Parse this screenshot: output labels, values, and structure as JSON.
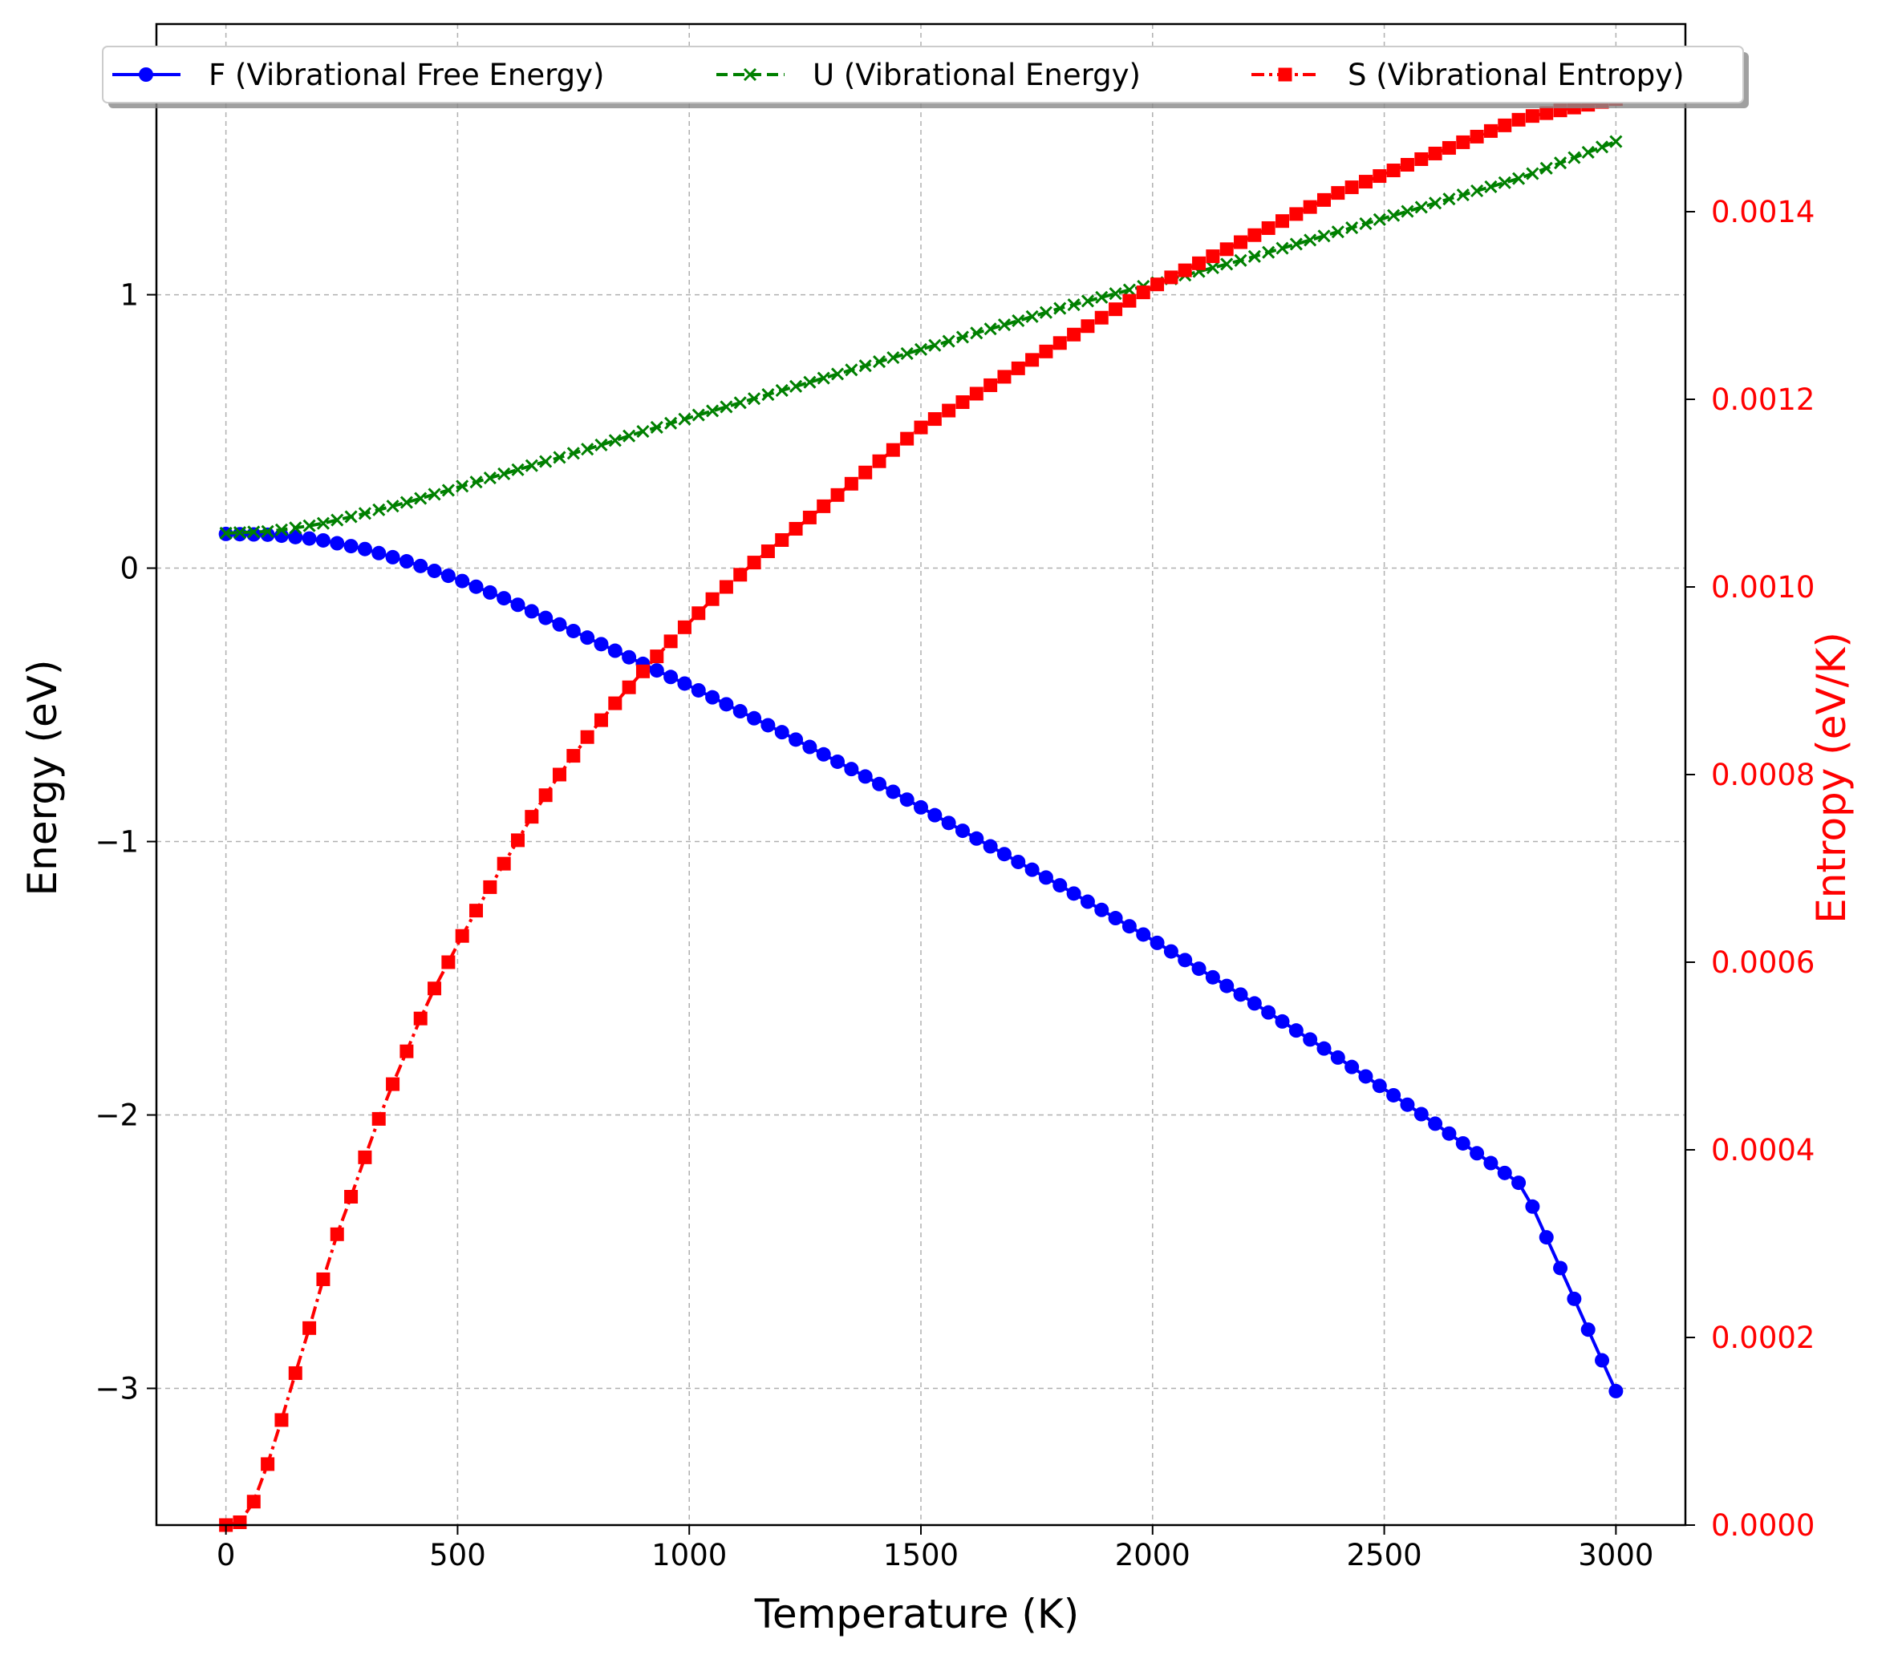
{
  "chart_data": {
    "type": "line",
    "title": "",
    "xlabel": "Temperature (K)",
    "ylabel": "Energy (eV)",
    "y2label": "Entropy (eV/K)",
    "xlim": [
      -150,
      3150
    ],
    "ylim": [
      -3.5,
      1.99
    ],
    "y2lim": [
      0.0,
      0.0016
    ],
    "xticks": [
      0,
      500,
      1000,
      1500,
      2000,
      2500,
      3000
    ],
    "xtick_labels": [
      "0",
      "500",
      "1000",
      "1500",
      "2000",
      "2500",
      "3000"
    ],
    "yticks": [
      -3,
      -2,
      -1,
      0,
      1
    ],
    "ytick_labels": [
      "−3",
      "−2",
      "−1",
      "0",
      "1"
    ],
    "y2ticks": [
      0.0,
      0.0002,
      0.0004,
      0.0006,
      0.0008,
      0.001,
      0.0012,
      0.0014
    ],
    "y2tick_labels": [
      "0.0000",
      "0.0002",
      "0.0004",
      "0.0006",
      "0.0008",
      "0.0010",
      "0.0012",
      "0.0014"
    ],
    "grid": true,
    "legend_position": "top",
    "x_range": [
      0,
      3000
    ],
    "x_step": 30,
    "series": [
      {
        "name": "F (Vibrational Free Energy)",
        "axis": "left",
        "color": "#0000ff",
        "marker": "circle",
        "linestyle": "solid",
        "x": [
          0,
          100,
          200,
          300,
          400,
          500,
          600,
          700,
          800,
          900,
          1000,
          1200,
          1400,
          1600,
          1800,
          2000,
          2200,
          2400,
          2600,
          2800,
          3000
        ],
        "y": [
          0.125,
          0.122,
          0.105,
          0.07,
          0.02,
          -0.04,
          -0.11,
          -0.19,
          -0.27,
          -0.35,
          -0.43,
          -0.6,
          -0.78,
          -0.97,
          -1.16,
          -1.36,
          -1.57,
          -1.79,
          -2.02,
          -2.26,
          -3.01
        ]
      },
      {
        "name": "U (Vibrational Energy)",
        "axis": "left",
        "color": "#008000",
        "marker": "x",
        "linestyle": "dashed",
        "x": [
          0,
          100,
          200,
          300,
          400,
          500,
          600,
          700,
          800,
          900,
          1000,
          1200,
          1400,
          1600,
          1800,
          2000,
          2200,
          2400,
          2600,
          2800,
          3000
        ],
        "y": [
          0.128,
          0.135,
          0.16,
          0.2,
          0.245,
          0.295,
          0.345,
          0.395,
          0.445,
          0.5,
          0.55,
          0.65,
          0.75,
          0.85,
          0.95,
          1.04,
          1.13,
          1.23,
          1.33,
          1.43,
          1.56
        ]
      },
      {
        "name": "S (Vibrational Entropy)",
        "axis": "right",
        "color": "#ff0000",
        "marker": "square",
        "linestyle": "dashdot",
        "x": [
          0,
          30,
          60,
          90,
          120,
          150,
          180,
          210,
          240,
          270,
          300,
          330,
          360,
          390,
          420,
          450,
          480,
          510,
          540,
          570,
          600,
          630,
          660,
          690,
          720,
          750,
          780,
          810,
          840,
          870,
          900,
          930,
          960,
          990,
          1020,
          1050,
          1080,
          1110,
          1140,
          1170,
          1200,
          1500,
          1800,
          2000,
          2200,
          2400,
          2600,
          2800,
          3000
        ],
        "y": [
          0.0,
          3e-06,
          2.5e-05,
          6.5e-05,
          0.000112,
          0.000162,
          0.00021,
          0.000262,
          0.00031,
          0.00035,
          0.000392,
          0.000433,
          0.00047,
          0.000505,
          0.00054,
          0.000572,
          0.0006,
          0.000628,
          0.000655,
          0.00068,
          0.000705,
          0.00073,
          0.000755,
          0.000778,
          0.0008,
          0.00082,
          0.00084,
          0.000858,
          0.000876,
          0.000893,
          0.00091,
          0.000926,
          0.000942,
          0.000957,
          0.000972,
          0.000987,
          0.001,
          0.001013,
          0.001026,
          0.001038,
          0.00105,
          0.00117,
          0.00126,
          0.00132,
          0.00137,
          0.00142,
          0.00146,
          0.0015,
          0.00152
        ]
      }
    ]
  }
}
